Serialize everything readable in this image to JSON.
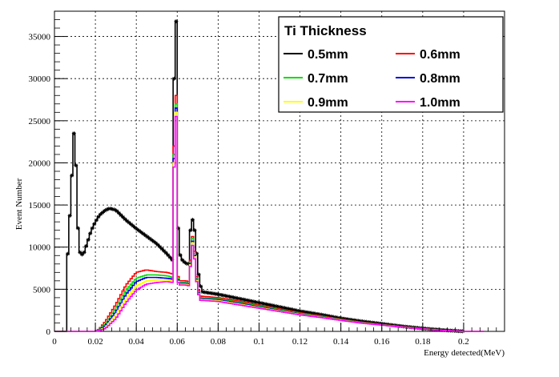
{
  "chart_data": {
    "type": "line",
    "style": "step-histogram",
    "xlabel": "Energy detected(MeV)",
    "ylabel": "Event Number",
    "xlim": [
      0,
      0.22
    ],
    "ylim": [
      0,
      38000
    ],
    "x_ticks": [
      "0",
      "0.02",
      "0.04",
      "0.06",
      "0.08",
      "0.1",
      "0.12",
      "0.14",
      "0.16",
      "0.18",
      "0.2"
    ],
    "y_ticks": [
      "0",
      "5000",
      "10000",
      "15000",
      "20000",
      "25000",
      "30000",
      "35000"
    ],
    "grid": true,
    "legend": {
      "title": "Ti Thickness",
      "position": "top-right",
      "columns": 2
    },
    "series": [
      {
        "name": "0.5mm",
        "color": "#000000",
        "marker": "star",
        "points": [
          [
            0,
            0
          ],
          [
            0.006,
            0
          ],
          [
            0.0065,
            9200
          ],
          [
            0.008,
            16000
          ],
          [
            0.009,
            21000
          ],
          [
            0.0095,
            23500
          ],
          [
            0.01,
            24400
          ],
          [
            0.011,
            15000
          ],
          [
            0.012,
            9500
          ],
          [
            0.014,
            9000
          ],
          [
            0.016,
            10500
          ],
          [
            0.018,
            12000
          ],
          [
            0.02,
            13000
          ],
          [
            0.022,
            13800
          ],
          [
            0.025,
            14400
          ],
          [
            0.027,
            14600
          ],
          [
            0.03,
            14400
          ],
          [
            0.035,
            13200
          ],
          [
            0.04,
            12200
          ],
          [
            0.045,
            11300
          ],
          [
            0.05,
            10400
          ],
          [
            0.055,
            9200
          ],
          [
            0.0575,
            8500
          ],
          [
            0.058,
            12000
          ],
          [
            0.0585,
            30000
          ],
          [
            0.059,
            37000
          ],
          [
            0.0595,
            36800
          ],
          [
            0.06,
            15000
          ],
          [
            0.061,
            9500
          ],
          [
            0.062,
            8600
          ],
          [
            0.064,
            8100
          ],
          [
            0.0655,
            8000
          ],
          [
            0.0665,
            12000
          ],
          [
            0.067,
            13500
          ],
          [
            0.068,
            13000
          ],
          [
            0.069,
            11000
          ],
          [
            0.07,
            7500
          ],
          [
            0.071,
            6000
          ],
          [
            0.072,
            4700
          ],
          [
            0.08,
            4400
          ],
          [
            0.09,
            3900
          ],
          [
            0.1,
            3400
          ],
          [
            0.11,
            2900
          ],
          [
            0.12,
            2400
          ],
          [
            0.13,
            2000
          ],
          [
            0.14,
            1550
          ],
          [
            0.15,
            1200
          ],
          [
            0.16,
            900
          ],
          [
            0.17,
            600
          ],
          [
            0.18,
            350
          ],
          [
            0.19,
            150
          ],
          [
            0.2,
            0
          ],
          [
            0.21,
            0
          ]
        ]
      },
      {
        "name": "0.6mm",
        "color": "#ff0000",
        "marker": "none",
        "points": [
          [
            0,
            0
          ],
          [
            0.02,
            0
          ],
          [
            0.022,
            300
          ],
          [
            0.025,
            1200
          ],
          [
            0.03,
            3200
          ],
          [
            0.035,
            5500
          ],
          [
            0.04,
            7000
          ],
          [
            0.045,
            7300
          ],
          [
            0.05,
            7100
          ],
          [
            0.055,
            7000
          ],
          [
            0.058,
            6800
          ],
          [
            0.0585,
            22000
          ],
          [
            0.059,
            29500
          ],
          [
            0.0595,
            28000
          ],
          [
            0.06,
            7000
          ],
          [
            0.061,
            6000
          ],
          [
            0.064,
            6000
          ],
          [
            0.066,
            5900
          ],
          [
            0.067,
            11000
          ],
          [
            0.068,
            11500
          ],
          [
            0.069,
            7500
          ],
          [
            0.07,
            5500
          ],
          [
            0.071,
            4200
          ],
          [
            0.08,
            4000
          ],
          [
            0.09,
            3600
          ],
          [
            0.1,
            3100
          ],
          [
            0.11,
            2650
          ],
          [
            0.12,
            2200
          ],
          [
            0.13,
            1850
          ],
          [
            0.14,
            1450
          ],
          [
            0.15,
            1100
          ],
          [
            0.16,
            830
          ],
          [
            0.17,
            560
          ],
          [
            0.18,
            330
          ],
          [
            0.19,
            130
          ],
          [
            0.2,
            0
          ],
          [
            0.21,
            0
          ]
        ]
      },
      {
        "name": "0.7mm",
        "color": "#00dd00",
        "marker": "none",
        "points": [
          [
            0,
            0
          ],
          [
            0.02,
            0
          ],
          [
            0.022,
            200
          ],
          [
            0.025,
            900
          ],
          [
            0.03,
            2700
          ],
          [
            0.035,
            4900
          ],
          [
            0.04,
            6300
          ],
          [
            0.045,
            6700
          ],
          [
            0.05,
            6700
          ],
          [
            0.055,
            6600
          ],
          [
            0.058,
            6400
          ],
          [
            0.0585,
            21000
          ],
          [
            0.059,
            28500
          ],
          [
            0.0595,
            27000
          ],
          [
            0.06,
            6700
          ],
          [
            0.061,
            5800
          ],
          [
            0.064,
            5800
          ],
          [
            0.066,
            5700
          ],
          [
            0.067,
            10800
          ],
          [
            0.068,
            11200
          ],
          [
            0.069,
            7300
          ],
          [
            0.07,
            5300
          ],
          [
            0.071,
            4000
          ],
          [
            0.08,
            3850
          ],
          [
            0.09,
            3450
          ],
          [
            0.1,
            3000
          ],
          [
            0.11,
            2550
          ],
          [
            0.12,
            2120
          ],
          [
            0.13,
            1780
          ],
          [
            0.14,
            1400
          ],
          [
            0.15,
            1060
          ],
          [
            0.16,
            800
          ],
          [
            0.17,
            540
          ],
          [
            0.18,
            320
          ],
          [
            0.19,
            120
          ],
          [
            0.2,
            0
          ],
          [
            0.21,
            0
          ]
        ]
      },
      {
        "name": "0.8mm",
        "color": "#0000dd",
        "marker": "none",
        "points": [
          [
            0,
            0
          ],
          [
            0.02,
            0
          ],
          [
            0.022,
            150
          ],
          [
            0.025,
            700
          ],
          [
            0.03,
            2300
          ],
          [
            0.035,
            4400
          ],
          [
            0.04,
            5900
          ],
          [
            0.045,
            6400
          ],
          [
            0.05,
            6400
          ],
          [
            0.055,
            6300
          ],
          [
            0.058,
            6200
          ],
          [
            0.0585,
            20500
          ],
          [
            0.059,
            28000
          ],
          [
            0.0595,
            26500
          ],
          [
            0.06,
            6500
          ],
          [
            0.061,
            5700
          ],
          [
            0.064,
            5700
          ],
          [
            0.066,
            5600
          ],
          [
            0.067,
            10500
          ],
          [
            0.068,
            10900
          ],
          [
            0.069,
            7100
          ],
          [
            0.07,
            5200
          ],
          [
            0.071,
            3900
          ],
          [
            0.08,
            3750
          ],
          [
            0.09,
            3350
          ],
          [
            0.1,
            2900
          ],
          [
            0.11,
            2480
          ],
          [
            0.12,
            2060
          ],
          [
            0.13,
            1730
          ],
          [
            0.14,
            1360
          ],
          [
            0.15,
            1030
          ],
          [
            0.16,
            780
          ],
          [
            0.17,
            520
          ],
          [
            0.18,
            310
          ],
          [
            0.19,
            115
          ],
          [
            0.2,
            0
          ],
          [
            0.21,
            0
          ]
        ]
      },
      {
        "name": "0.9mm",
        "color": "#ffff00",
        "marker": "none",
        "points": [
          [
            0,
            0
          ],
          [
            0.02,
            0
          ],
          [
            0.022,
            100
          ],
          [
            0.025,
            500
          ],
          [
            0.03,
            1900
          ],
          [
            0.035,
            3900
          ],
          [
            0.04,
            5400
          ],
          [
            0.045,
            6000
          ],
          [
            0.05,
            6100
          ],
          [
            0.055,
            6100
          ],
          [
            0.058,
            6000
          ],
          [
            0.0585,
            20000
          ],
          [
            0.059,
            27000
          ],
          [
            0.0595,
            26000
          ],
          [
            0.06,
            6300
          ],
          [
            0.061,
            5600
          ],
          [
            0.064,
            5600
          ],
          [
            0.066,
            5500
          ],
          [
            0.067,
            10300
          ],
          [
            0.068,
            10700
          ],
          [
            0.069,
            7000
          ],
          [
            0.07,
            5100
          ],
          [
            0.071,
            3800
          ],
          [
            0.08,
            3650
          ],
          [
            0.09,
            3250
          ],
          [
            0.1,
            2820
          ],
          [
            0.11,
            2420
          ],
          [
            0.12,
            2010
          ],
          [
            0.13,
            1690
          ],
          [
            0.14,
            1330
          ],
          [
            0.15,
            1000
          ],
          [
            0.16,
            760
          ],
          [
            0.17,
            510
          ],
          [
            0.18,
            300
          ],
          [
            0.19,
            110
          ],
          [
            0.2,
            0
          ],
          [
            0.21,
            0
          ]
        ]
      },
      {
        "name": "1.0mm",
        "color": "#ff00ff",
        "marker": "none",
        "points": [
          [
            0,
            0
          ],
          [
            0.02,
            0
          ],
          [
            0.022,
            80
          ],
          [
            0.025,
            350
          ],
          [
            0.03,
            1500
          ],
          [
            0.035,
            3400
          ],
          [
            0.04,
            4900
          ],
          [
            0.045,
            5600
          ],
          [
            0.05,
            5800
          ],
          [
            0.055,
            5900
          ],
          [
            0.058,
            5800
          ],
          [
            0.0585,
            19500
          ],
          [
            0.059,
            26500
          ],
          [
            0.0595,
            25500
          ],
          [
            0.06,
            6100
          ],
          [
            0.061,
            5500
          ],
          [
            0.064,
            5500
          ],
          [
            0.066,
            5400
          ],
          [
            0.067,
            10000
          ],
          [
            0.068,
            10400
          ],
          [
            0.069,
            6800
          ],
          [
            0.07,
            5000
          ],
          [
            0.071,
            3700
          ],
          [
            0.08,
            3550
          ],
          [
            0.09,
            3150
          ],
          [
            0.1,
            2750
          ],
          [
            0.11,
            2360
          ],
          [
            0.12,
            1960
          ],
          [
            0.13,
            1650
          ],
          [
            0.14,
            1300
          ],
          [
            0.15,
            980
          ],
          [
            0.16,
            740
          ],
          [
            0.17,
            500
          ],
          [
            0.18,
            290
          ],
          [
            0.19,
            105
          ],
          [
            0.2,
            0
          ],
          [
            0.21,
            0
          ]
        ]
      }
    ]
  }
}
